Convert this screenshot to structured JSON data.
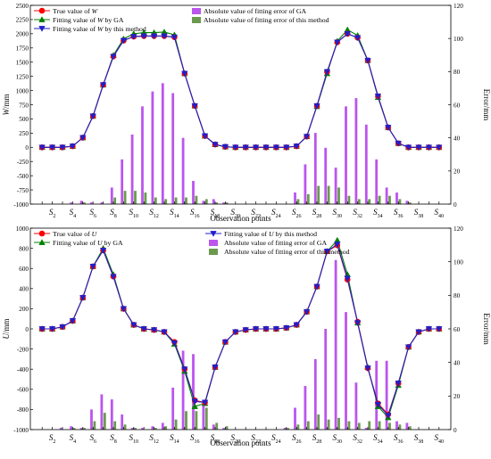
{
  "chart_data": [
    {
      "type": "line",
      "ylabel": "W/mm",
      "y2label": "Error/mm",
      "xlabel": "Observation points",
      "xticks": [
        "2",
        "4",
        "6",
        "8",
        "10",
        "12",
        "14",
        "16",
        "18",
        "20",
        "22",
        "24",
        "26",
        "28",
        "30",
        "32",
        "34",
        "36",
        "38",
        "40"
      ],
      "tick_prefix": "S",
      "ylim": [
        -1000,
        2500
      ],
      "y_ticks": [
        -1000,
        -750,
        -500,
        -250,
        0,
        250,
        500,
        750,
        1000,
        1250,
        1500,
        1750,
        2000,
        2250,
        2500
      ],
      "y2lim": [
        0,
        120
      ],
      "y2_ticks": [
        0,
        20,
        40,
        60,
        80,
        100,
        120
      ],
      "legend": {
        "true_label": "True value of ",
        "true_var": "W",
        "ga_label": "Fitting value of ",
        "ga_var": "W",
        "ga_suffix": " by GA",
        "tm_label": "Fitting value of ",
        "tm_var": "W",
        "tm_suffix": " by this method",
        "ga_err": "Absolute value of fitting error of GA",
        "tm_err": "Absolute value of fitting error of this method"
      },
      "x": [
        1,
        2,
        3,
        4,
        5,
        6,
        7,
        8,
        9,
        10,
        11,
        12,
        13,
        14,
        15,
        16,
        17,
        18,
        19,
        20,
        21,
        22,
        23,
        24,
        25,
        26,
        27,
        28,
        29,
        30,
        31,
        32,
        33,
        34,
        35,
        36,
        37,
        38,
        39,
        40
      ],
      "series": [
        {
          "name": "True value of W",
          "values": [
            0,
            0,
            0,
            20,
            170,
            550,
            1100,
            1600,
            1880,
            1950,
            1960,
            1960,
            1960,
            1940,
            1300,
            730,
            200,
            50,
            10,
            0,
            0,
            0,
            0,
            0,
            0,
            20,
            190,
            730,
            1330,
            1850,
            2000,
            1930,
            1530,
            900,
            350,
            70,
            0,
            0,
            0,
            0
          ]
        },
        {
          "name": "Fitting value of W by GA",
          "values": [
            0,
            0,
            0,
            20,
            170,
            550,
            1100,
            1620,
            1910,
            2000,
            2020,
            2020,
            2030,
            1980,
            1300,
            730,
            200,
            50,
            10,
            0,
            0,
            0,
            0,
            0,
            0,
            20,
            190,
            720,
            1300,
            1870,
            2070,
            1970,
            1530,
            880,
            350,
            70,
            0,
            0,
            0,
            0
          ]
        },
        {
          "name": "Fitting value of W by this method",
          "values": [
            0,
            0,
            0,
            20,
            170,
            550,
            1100,
            1600,
            1880,
            1950,
            1960,
            1960,
            1960,
            1940,
            1300,
            730,
            200,
            50,
            10,
            0,
            0,
            0,
            0,
            0,
            0,
            20,
            190,
            730,
            1330,
            1850,
            2000,
            1930,
            1530,
            900,
            350,
            70,
            0,
            0,
            0,
            0
          ]
        }
      ],
      "error_series": [
        {
          "name": "Absolute value of fitting error of GA",
          "values": [
            0,
            0,
            0,
            1,
            2,
            1,
            1,
            10,
            27,
            42,
            59,
            68,
            73,
            67,
            40,
            14,
            2,
            3,
            1,
            0,
            0,
            0,
            0,
            0,
            0,
            7,
            24,
            43,
            34,
            22,
            59,
            64,
            48,
            27,
            10,
            7,
            2,
            0,
            0,
            0
          ]
        },
        {
          "name": "Absolute value of fitting error of this method",
          "values": [
            0,
            0,
            0,
            0,
            1,
            0,
            0,
            4,
            8,
            8,
            7,
            4,
            3,
            4,
            4,
            5,
            3,
            1,
            1,
            0,
            0,
            0,
            0,
            0,
            0,
            3,
            6,
            11,
            11,
            10,
            5,
            3,
            3,
            5,
            5,
            3,
            1,
            0,
            0,
            0
          ]
        }
      ]
    },
    {
      "type": "line",
      "ylabel": "U/mm",
      "y2label": "Error/mm",
      "xlabel": "Observation points",
      "xticks": [
        "2",
        "4",
        "6",
        "8",
        "10",
        "12",
        "14",
        "16",
        "18",
        "20",
        "22",
        "24",
        "26",
        "28",
        "30",
        "32",
        "34",
        "36",
        "38",
        "40"
      ],
      "tick_prefix": "S",
      "ylim": [
        -1000,
        1000
      ],
      "y_ticks": [
        -1000,
        -800,
        -600,
        -400,
        -200,
        0,
        200,
        400,
        600,
        800,
        1000
      ],
      "y2lim": [
        0,
        120
      ],
      "y2_ticks": [
        0,
        20,
        40,
        60,
        80,
        100,
        120
      ],
      "legend": {
        "true_label": "True value of ",
        "true_var": "U",
        "ga_label": "Fitting value of ",
        "ga_var": "U",
        "ga_suffix": " by GA",
        "tm_label": "Fitting value of ",
        "tm_var": "U",
        "tm_suffix": " by this method",
        "ga_err": "Absolute value of fitting error of GA",
        "tm_err": "Absolute value of fitting error of this method"
      },
      "x": [
        1,
        2,
        3,
        4,
        5,
        6,
        7,
        8,
        9,
        10,
        11,
        12,
        13,
        14,
        15,
        16,
        17,
        18,
        19,
        20,
        21,
        22,
        23,
        24,
        25,
        26,
        27,
        28,
        29,
        30,
        31,
        32,
        33,
        34,
        35,
        36,
        37,
        38,
        39,
        40
      ],
      "series": [
        {
          "name": "True value of U",
          "values": [
            0,
            0,
            20,
            80,
            310,
            620,
            780,
            520,
            200,
            40,
            0,
            -10,
            -30,
            -130,
            -400,
            -710,
            -730,
            -380,
            -130,
            -30,
            -10,
            0,
            0,
            0,
            10,
            40,
            170,
            420,
            770,
            830,
            490,
            70,
            -390,
            -740,
            -850,
            -540,
            -180,
            -30,
            0,
            0
          ]
        },
        {
          "name": "Fitting value of U by GA",
          "values": [
            0,
            0,
            20,
            80,
            310,
            620,
            800,
            540,
            200,
            40,
            0,
            -10,
            -30,
            -150,
            -420,
            -770,
            -740,
            -380,
            -130,
            -30,
            -10,
            0,
            0,
            0,
            10,
            40,
            170,
            420,
            770,
            880,
            540,
            60,
            -380,
            -770,
            -880,
            -560,
            -180,
            -30,
            0,
            0
          ]
        },
        {
          "name": "Fitting value of U by this method",
          "values": [
            0,
            0,
            20,
            80,
            310,
            620,
            780,
            520,
            200,
            40,
            0,
            -10,
            -30,
            -140,
            -400,
            -720,
            -730,
            -380,
            -130,
            -30,
            -10,
            0,
            0,
            0,
            10,
            40,
            170,
            420,
            770,
            840,
            500,
            60,
            -390,
            -750,
            -860,
            -540,
            -180,
            -30,
            0,
            0
          ]
        }
      ],
      "error_series": [
        {
          "name": "Absolute value of fitting error of GA",
          "values": [
            0,
            0,
            1,
            2,
            1,
            12,
            21,
            18,
            9,
            1,
            1,
            2,
            4,
            25,
            47,
            45,
            15,
            3,
            1,
            0,
            0,
            0,
            0,
            0,
            1,
            13,
            26,
            42,
            60,
            101,
            70,
            28,
            1,
            41,
            41,
            5,
            4,
            0,
            0,
            0
          ]
        },
        {
          "name": "Absolute value of fitting error of this method",
          "values": [
            0,
            0,
            0,
            1,
            1,
            5,
            10,
            5,
            3,
            1,
            0,
            1,
            2,
            6,
            11,
            11,
            13,
            4,
            2,
            0,
            0,
            0,
            0,
            0,
            1,
            3,
            5,
            9,
            6,
            7,
            5,
            4,
            5,
            5,
            4,
            3,
            2,
            0,
            0,
            0
          ]
        }
      ]
    }
  ],
  "colors": {
    "true": "#ff0000",
    "ga": "#008000",
    "tm": "#2020c8",
    "ga_err": "#bb55ee",
    "tm_err": "#6b9a4f",
    "axis": "#000000"
  }
}
